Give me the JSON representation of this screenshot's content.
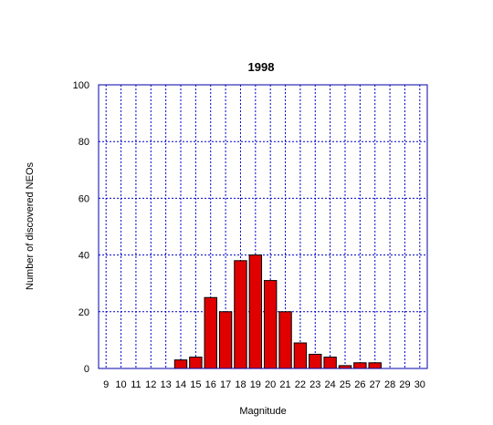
{
  "chart_data": {
    "type": "bar",
    "title": "1998",
    "xlabel": "Magnitude",
    "ylabel": "Number of discovered NEOs",
    "categories": [
      "9",
      "10",
      "11",
      "12",
      "13",
      "14",
      "15",
      "16",
      "17",
      "18",
      "19",
      "20",
      "21",
      "22",
      "23",
      "24",
      "25",
      "26",
      "27",
      "28",
      "29",
      "30"
    ],
    "values": [
      0,
      0,
      0,
      0,
      0,
      3,
      4,
      25,
      20,
      38,
      40,
      31,
      20,
      9,
      5,
      4,
      1,
      2,
      2,
      0,
      0,
      0
    ],
    "ylim": [
      0,
      100
    ],
    "yticks": [
      "0",
      "20",
      "40",
      "60",
      "80",
      "100"
    ],
    "grid": true,
    "colors": {
      "bar_fill": "#e00000",
      "bar_stroke": "#000000",
      "grid": "#0000cc",
      "frame": "#0000aa"
    }
  }
}
